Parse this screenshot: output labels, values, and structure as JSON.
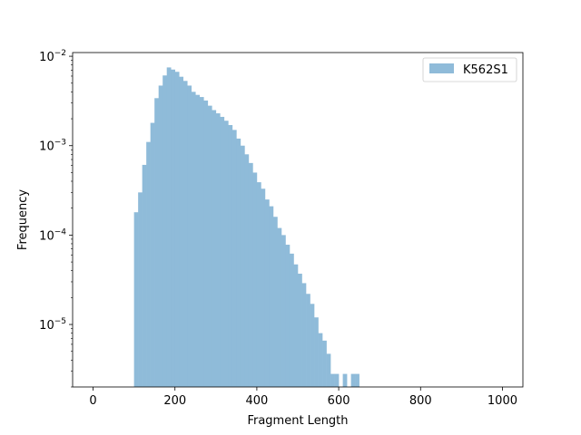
{
  "chart_data": {
    "type": "bar",
    "title": "",
    "xlabel": "Fragment Length",
    "ylabel": "Frequency",
    "xlim": [
      -50,
      1050
    ],
    "ylim": [
      2e-06,
      0.011
    ],
    "y_scale": "log",
    "x_ticks": [
      0,
      200,
      400,
      600,
      800,
      1000
    ],
    "x_tick_labels": [
      "0",
      "200",
      "400",
      "600",
      "800",
      "1000"
    ],
    "y_ticks": [
      1e-05,
      0.0001,
      0.001,
      0.01
    ],
    "y_tick_labels": [
      {
        "base": "10",
        "exp": "−5"
      },
      {
        "base": "10",
        "exp": "−4"
      },
      {
        "base": "10",
        "exp": "−3"
      },
      {
        "base": "10",
        "exp": "−2"
      }
    ],
    "grid": false,
    "legend_position": "top-right",
    "bin_width": 10,
    "series": [
      {
        "name": "K562S1",
        "color": "#8fbbd9",
        "bin_starts": [
          100,
          110,
          120,
          130,
          140,
          150,
          160,
          170,
          180,
          190,
          200,
          210,
          220,
          230,
          240,
          250,
          260,
          270,
          280,
          290,
          300,
          310,
          320,
          330,
          340,
          350,
          360,
          370,
          380,
          390,
          400,
          410,
          420,
          430,
          440,
          450,
          460,
          470,
          480,
          490,
          500,
          510,
          520,
          530,
          540,
          550,
          560,
          570,
          580,
          590,
          600,
          610,
          620,
          630,
          640
        ],
        "values": [
          0.00018,
          0.0003,
          0.00061,
          0.0011,
          0.0018,
          0.0034,
          0.0047,
          0.0061,
          0.0075,
          0.0071,
          0.0067,
          0.0059,
          0.0053,
          0.0047,
          0.004,
          0.0037,
          0.0035,
          0.0032,
          0.0028,
          0.0025,
          0.0023,
          0.0021,
          0.0019,
          0.0017,
          0.0015,
          0.0012,
          0.001,
          0.0008,
          0.00064,
          0.0005,
          0.00039,
          0.00033,
          0.00025,
          0.00021,
          0.00016,
          0.00012,
          0.0001,
          7.8e-05,
          6.2e-05,
          4.7e-05,
          3.7e-05,
          2.9e-05,
          2.2e-05,
          1.7e-05,
          1.2e-05,
          8e-06,
          6.6e-06,
          4.7e-06,
          2.8e-06,
          2.8e-06,
          1.8e-06,
          2.8e-06,
          1.8e-06,
          2.8e-06,
          2.8e-06
        ]
      }
    ]
  }
}
